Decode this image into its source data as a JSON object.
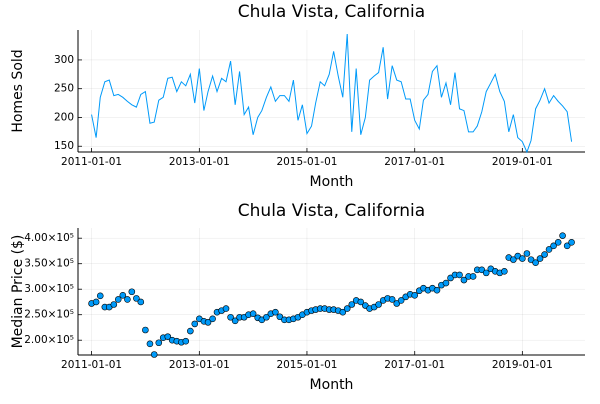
{
  "chart_data": [
    {
      "type": "line",
      "title": "Chula Vista, California",
      "xlabel": "Month",
      "ylabel": "Homes Sold",
      "color": "#009af9",
      "grid": true,
      "x": [
        "2011-01-01",
        "2011-02-01",
        "2011-03-01",
        "2011-04-01",
        "2011-05-01",
        "2011-06-01",
        "2011-07-01",
        "2011-08-01",
        "2011-09-01",
        "2011-10-01",
        "2011-11-01",
        "2011-12-01",
        "2012-01-01",
        "2012-02-01",
        "2012-03-01",
        "2012-04-01",
        "2012-05-01",
        "2012-06-01",
        "2012-07-01",
        "2012-08-01",
        "2012-09-01",
        "2012-10-01",
        "2012-11-01",
        "2012-12-01",
        "2013-01-01",
        "2013-02-01",
        "2013-03-01",
        "2013-04-01",
        "2013-05-01",
        "2013-06-01",
        "2013-07-01",
        "2013-08-01",
        "2013-09-01",
        "2013-10-01",
        "2013-11-01",
        "2013-12-01",
        "2014-01-01",
        "2014-02-01",
        "2014-03-01",
        "2014-04-01",
        "2014-05-01",
        "2014-06-01",
        "2014-07-01",
        "2014-08-01",
        "2014-09-01",
        "2014-10-01",
        "2014-11-01",
        "2014-12-01",
        "2015-01-01",
        "2015-02-01",
        "2015-03-01",
        "2015-04-01",
        "2015-05-01",
        "2015-06-01",
        "2015-07-01",
        "2015-08-01",
        "2015-09-01",
        "2015-10-01",
        "2015-11-01",
        "2015-12-01",
        "2016-01-01",
        "2016-02-01",
        "2016-03-01",
        "2016-04-01",
        "2016-05-01",
        "2016-06-01",
        "2016-07-01",
        "2016-08-01",
        "2016-09-01",
        "2016-10-01",
        "2016-11-01",
        "2016-12-01",
        "2017-01-01",
        "2017-02-01",
        "2017-03-01",
        "2017-04-01",
        "2017-05-01",
        "2017-06-01",
        "2017-07-01",
        "2017-08-01",
        "2017-09-01",
        "2017-10-01",
        "2017-11-01",
        "2017-12-01",
        "2018-01-01",
        "2018-02-01",
        "2018-03-01",
        "2018-04-01",
        "2018-05-01",
        "2018-06-01",
        "2018-07-01",
        "2018-08-01",
        "2018-09-01",
        "2018-10-01",
        "2018-11-01",
        "2018-12-01",
        "2019-01-01",
        "2019-02-01",
        "2019-03-01",
        "2019-04-01",
        "2019-05-01",
        "2019-06-01",
        "2019-07-01",
        "2019-08-01",
        "2019-09-01",
        "2019-10-01",
        "2019-11-01",
        "2019-12-01"
      ],
      "values": [
        205,
        165,
        235,
        262,
        265,
        238,
        240,
        235,
        228,
        222,
        218,
        240,
        245,
        190,
        192,
        230,
        235,
        268,
        270,
        245,
        262,
        255,
        275,
        225,
        285,
        212,
        245,
        272,
        245,
        268,
        262,
        298,
        222,
        280,
        205,
        218,
        170,
        200,
        212,
        235,
        253,
        228,
        238,
        238,
        228,
        265,
        195,
        222,
        172,
        185,
        225,
        262,
        255,
        275,
        315,
        272,
        235,
        345,
        175,
        285,
        170,
        200,
        265,
        272,
        278,
        322,
        232,
        290,
        265,
        262,
        232,
        232,
        195,
        180,
        230,
        240,
        280,
        290,
        235,
        260,
        222,
        278,
        215,
        212,
        175,
        175,
        185,
        210,
        245,
        260,
        275,
        245,
        228,
        175,
        205,
        165,
        158,
        140,
        160,
        215,
        230,
        250,
        225,
        238,
        228,
        220,
        210,
        158
      ],
      "xlim": [
        "2010-10-01",
        "2020-03-01"
      ],
      "xticks": [
        "2011-01-01",
        "2013-01-01",
        "2015-01-01",
        "2017-01-01",
        "2019-01-01"
      ],
      "ylim": [
        140,
        352
      ],
      "yticks": [
        150,
        200,
        250,
        300
      ]
    },
    {
      "type": "scatter",
      "title": "Chula Vista, California",
      "xlabel": "Month",
      "ylabel": "Median Price ($)",
      "color": "#009af9",
      "grid": true,
      "x": [
        "2011-01-01",
        "2011-02-01",
        "2011-03-01",
        "2011-04-01",
        "2011-05-01",
        "2011-06-01",
        "2011-07-01",
        "2011-08-01",
        "2011-09-01",
        "2011-10-01",
        "2011-11-01",
        "2011-12-01",
        "2012-01-01",
        "2012-02-01",
        "2012-03-01",
        "2012-04-01",
        "2012-05-01",
        "2012-06-01",
        "2012-07-01",
        "2012-08-01",
        "2012-09-01",
        "2012-10-01",
        "2012-11-01",
        "2012-12-01",
        "2013-01-01",
        "2013-02-01",
        "2013-03-01",
        "2013-04-01",
        "2013-05-01",
        "2013-06-01",
        "2013-07-01",
        "2013-08-01",
        "2013-09-01",
        "2013-10-01",
        "2013-11-01",
        "2013-12-01",
        "2014-01-01",
        "2014-02-01",
        "2014-03-01",
        "2014-04-01",
        "2014-05-01",
        "2014-06-01",
        "2014-07-01",
        "2014-08-01",
        "2014-09-01",
        "2014-10-01",
        "2014-11-01",
        "2014-12-01",
        "2015-01-01",
        "2015-02-01",
        "2015-03-01",
        "2015-04-01",
        "2015-05-01",
        "2015-06-01",
        "2015-07-01",
        "2015-08-01",
        "2015-09-01",
        "2015-10-01",
        "2015-11-01",
        "2015-12-01",
        "2016-01-01",
        "2016-02-01",
        "2016-03-01",
        "2016-04-01",
        "2016-05-01",
        "2016-06-01",
        "2016-07-01",
        "2016-08-01",
        "2016-09-01",
        "2016-10-01",
        "2016-11-01",
        "2016-12-01",
        "2017-01-01",
        "2017-02-01",
        "2017-03-01",
        "2017-04-01",
        "2017-05-01",
        "2017-06-01",
        "2017-07-01",
        "2017-08-01",
        "2017-09-01",
        "2017-10-01",
        "2017-11-01",
        "2017-12-01",
        "2018-01-01",
        "2018-02-01",
        "2018-03-01",
        "2018-04-01",
        "2018-05-01",
        "2018-06-01",
        "2018-07-01",
        "2018-08-01",
        "2018-09-01",
        "2018-10-01",
        "2018-11-01",
        "2018-12-01",
        "2019-01-01",
        "2019-02-01",
        "2019-03-01",
        "2019-04-01",
        "2019-05-01",
        "2019-06-01",
        "2019-07-01",
        "2019-08-01",
        "2019-09-01",
        "2019-10-01",
        "2019-11-01",
        "2019-12-01"
      ],
      "values": [
        272000,
        275000,
        287000,
        265000,
        265000,
        270000,
        280000,
        288000,
        280000,
        295000,
        282000,
        275000,
        220000,
        193000,
        172000,
        195000,
        205000,
        207000,
        200000,
        198000,
        196000,
        198000,
        218000,
        232000,
        242000,
        237000,
        235000,
        242000,
        255000,
        258000,
        262000,
        245000,
        238000,
        245000,
        245000,
        250000,
        252000,
        244000,
        240000,
        245000,
        252000,
        255000,
        246000,
        240000,
        240000,
        242000,
        245000,
        250000,
        255000,
        258000,
        260000,
        262000,
        262000,
        260000,
        260000,
        258000,
        255000,
        262000,
        270000,
        278000,
        275000,
        268000,
        262000,
        265000,
        270000,
        278000,
        282000,
        280000,
        272000,
        278000,
        285000,
        290000,
        288000,
        297000,
        302000,
        298000,
        302000,
        298000,
        308000,
        312000,
        322000,
        328000,
        328000,
        318000,
        325000,
        325000,
        338000,
        338000,
        332000,
        340000,
        335000,
        332000,
        335000,
        362000,
        358000,
        365000,
        360000,
        370000,
        358000,
        352000,
        360000,
        368000,
        378000,
        385000,
        392000,
        405000,
        385000,
        392000
      ],
      "xlim": [
        "2010-10-01",
        "2020-03-01"
      ],
      "xticks": [
        "2011-01-01",
        "2013-01-01",
        "2015-01-01",
        "2017-01-01",
        "2019-01-01"
      ],
      "ylim": [
        171000,
        420000
      ],
      "yticks": [
        {
          "value": 200000,
          "label": "2.00×10⁵"
        },
        {
          "value": 250000,
          "label": "2.50×10⁵"
        },
        {
          "value": 300000,
          "label": "3.00×10⁵"
        },
        {
          "value": 350000,
          "label": "3.50×10⁵"
        },
        {
          "value": 400000,
          "label": "4.00×10⁵"
        }
      ]
    }
  ]
}
